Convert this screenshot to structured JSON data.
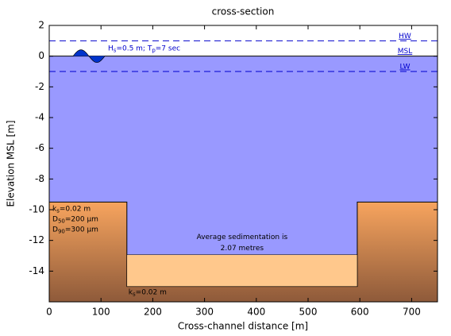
{
  "chart_data": {
    "type": "cross-section",
    "title": "cross-section",
    "xlabel": "Cross-channel distance [m]",
    "ylabel": "Elevation MSL [m]",
    "xlim": [
      0,
      750
    ],
    "ylim": [
      -16,
      2
    ],
    "xticks": [
      0,
      100,
      200,
      300,
      400,
      500,
      600,
      700
    ],
    "yticks": [
      -14,
      -12,
      -10,
      -8,
      -6,
      -4,
      -2,
      0,
      2
    ],
    "water_color": "#9999ff",
    "line_color": "#0000cc",
    "levels": [
      {
        "label": "HW",
        "value": 1,
        "style": "dashed"
      },
      {
        "label": "MSL",
        "value": 0,
        "style": "solid"
      },
      {
        "label": "LW",
        "value": -1,
        "style": "dashed"
      }
    ],
    "wave_label": [
      {
        "t": "H"
      },
      {
        "sub": "s"
      },
      {
        "t": "=0.5 m; T"
      },
      {
        "sub": "p"
      },
      {
        "t": "=7 sec"
      }
    ],
    "bed": {
      "x": [
        0,
        150,
        150,
        595,
        595,
        750
      ],
      "y": [
        -9.5,
        -9.5,
        -15,
        -15,
        -9.5,
        -9.5
      ]
    },
    "bank_labels": [
      [
        {
          "t": "k"
        },
        {
          "sub": "s"
        },
        {
          "t": "=0.02 m"
        }
      ],
      [
        {
          "t": "D"
        },
        {
          "sub": "50"
        },
        {
          "t": "=200 µm"
        }
      ],
      [
        {
          "t": "D"
        },
        {
          "sub": "90"
        },
        {
          "t": "=300 µm"
        }
      ]
    ],
    "channel_label": [
      {
        "t": "k"
      },
      {
        "sub": "s"
      },
      {
        "t": "=0.02 m"
      }
    ],
    "sediment": {
      "x": [
        150,
        595
      ],
      "bottom": -15,
      "thickness": 2.07,
      "color": "#ffc88c"
    },
    "sediment_text": [
      "Average sedimentation is",
      "2.07 metres"
    ]
  }
}
